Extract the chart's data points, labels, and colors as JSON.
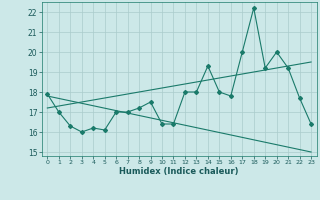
{
  "xlabel": "Humidex (Indice chaleur)",
  "x_values": [
    0,
    1,
    2,
    3,
    4,
    5,
    6,
    7,
    8,
    9,
    10,
    11,
    12,
    13,
    14,
    15,
    16,
    17,
    18,
    19,
    20,
    21,
    22,
    23
  ],
  "line1_y": [
    17.9,
    17.0,
    16.3,
    16.0,
    16.2,
    16.1,
    17.0,
    17.0,
    17.2,
    17.5,
    16.4,
    16.4,
    18.0,
    18.0,
    19.3,
    18.0,
    17.8,
    20.0,
    22.2,
    19.2,
    20.0,
    19.2,
    17.7,
    16.4
  ],
  "trend1_x": [
    0,
    23
  ],
  "trend1_y": [
    17.2,
    19.5
  ],
  "trend2_x": [
    0,
    23
  ],
  "trend2_y": [
    17.8,
    15.0
  ],
  "ylim": [
    14.8,
    22.5
  ],
  "xlim": [
    -0.5,
    23.5
  ],
  "yticks": [
    15,
    16,
    17,
    18,
    19,
    20,
    21,
    22
  ],
  "xticks": [
    0,
    1,
    2,
    3,
    4,
    5,
    6,
    7,
    8,
    9,
    10,
    11,
    12,
    13,
    14,
    15,
    16,
    17,
    18,
    19,
    20,
    21,
    22,
    23
  ],
  "line_color": "#1a7a6a",
  "bg_color": "#cce8e8",
  "grid_color": "#aacccc"
}
